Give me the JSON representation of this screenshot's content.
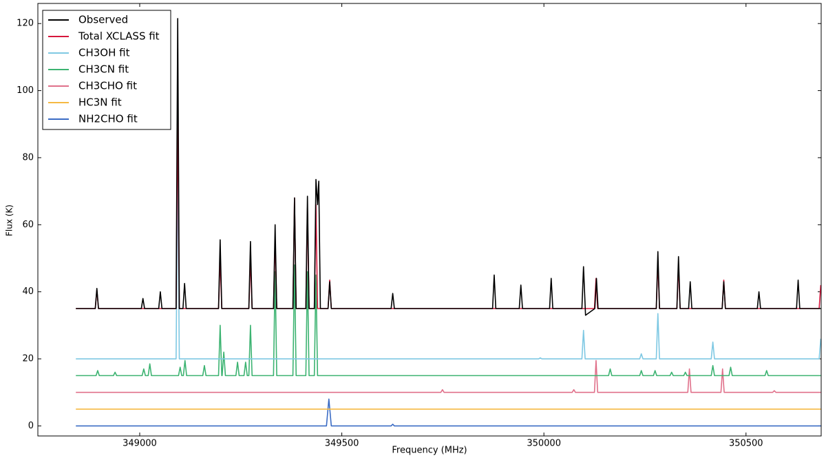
{
  "chart_data": {
    "type": "line",
    "x_label": "Frequency (MHz)",
    "y_label": "Flux (K)",
    "xlim": [
      348748,
      350686
    ],
    "ylim": [
      -3,
      126
    ],
    "xticks": [
      349000,
      349500,
      350000,
      350500
    ],
    "yticks": [
      0,
      20,
      40,
      60,
      80,
      100,
      120
    ],
    "legend": "upper left",
    "series": [
      {
        "name": "Observed",
        "color": "#000000",
        "x": [
          348842,
          348890,
          348894,
          348898,
          349004,
          349008,
          349012,
          349047,
          349051,
          349055,
          349090,
          349094,
          349098,
          349107,
          349111,
          349115,
          349195,
          349199,
          349203,
          349270,
          349274,
          349278,
          349331,
          349335,
          349339,
          349379,
          349383,
          349387,
          349411,
          349415,
          349419,
          349432,
          349436,
          349440,
          349443,
          349447,
          349466,
          349470,
          349474,
          349622,
          349626,
          349630,
          349873,
          349877,
          349881,
          349939,
          349943,
          349947,
          350014,
          350018,
          350022,
          350094,
          350098,
          350103,
          350126,
          350130,
          350134,
          350278,
          350282,
          350286,
          350329,
          350333,
          350337,
          350358,
          350362,
          350366,
          350441,
          350445,
          350449,
          350528,
          350532,
          350536,
          350625,
          350629,
          350633,
          350685
        ],
        "values": [
          35,
          35,
          41,
          35,
          35,
          38,
          35,
          35,
          40,
          35,
          35,
          121.5,
          35,
          35,
          42.5,
          35,
          35,
          55.5,
          35,
          35,
          55,
          35,
          35,
          60,
          35,
          35,
          68,
          35,
          35,
          68.5,
          35,
          35,
          73.5,
          66,
          73,
          35,
          35,
          43,
          35,
          35,
          39.5,
          35,
          35,
          45,
          35,
          35,
          42,
          35,
          35,
          44,
          35,
          35,
          47.5,
          33,
          35,
          44,
          35,
          35,
          52,
          35,
          35,
          50.5,
          35,
          35,
          43,
          35,
          35,
          43,
          35,
          35,
          40,
          35,
          35,
          43.5,
          35,
          35
        ]
      },
      {
        "name": "Total XCLASS fit",
        "color": "#d6163c",
        "x": [
          348842,
          348890,
          348894,
          348898,
          349090,
          349094,
          349098,
          349195,
          349199,
          349203,
          349270,
          349274,
          349278,
          349331,
          349335,
          349339,
          349379,
          349383,
          349387,
          349411,
          349415,
          349419,
          349432,
          349436,
          349440,
          349466,
          349470,
          349474,
          350125,
          350129,
          350133,
          350278,
          350282,
          350286,
          350329,
          350333,
          350337,
          350441,
          350445,
          350449,
          350681,
          350685
        ],
        "values": [
          35,
          35,
          40.5,
          35,
          35,
          93.5,
          35,
          35,
          50,
          35,
          35,
          50,
          35,
          35,
          56,
          35,
          35,
          68,
          35,
          35,
          65,
          35,
          35,
          66,
          35,
          35,
          43.5,
          35,
          35,
          44,
          35,
          35,
          49,
          35,
          35,
          48,
          35,
          35,
          43.5,
          35,
          35,
          42
        ]
      },
      {
        "name": "CH3OH fit",
        "color": "#7ec8e3",
        "x": [
          348842,
          349090,
          349094,
          349098,
          349987,
          349991,
          349995,
          350094,
          350098,
          350102,
          350237,
          350241,
          350245,
          350278,
          350282,
          350286,
          350414,
          350418,
          350422,
          350681,
          350685
        ],
        "values": [
          20,
          20,
          78,
          20,
          20,
          20.3,
          20,
          20,
          28.5,
          20,
          20,
          21.5,
          20,
          20,
          33.5,
          20,
          20,
          25,
          20,
          20,
          26
        ]
      },
      {
        "name": "CH3CN fit",
        "color": "#3cb371",
        "x": [
          348842,
          348892,
          348896,
          348900,
          348935,
          348939,
          348943,
          349006,
          349010,
          349014,
          349021,
          349025,
          349029,
          349096,
          349100,
          349104,
          349108,
          349112,
          349116,
          349156,
          349160,
          349164,
          349195,
          349199,
          349203,
          349204,
          349208,
          349212,
          349238,
          349242,
          349246,
          349258,
          349262,
          349266,
          349270,
          349274,
          349278,
          349331,
          349335,
          349339,
          349379,
          349383,
          349387,
          349411,
          349415,
          349419,
          349432,
          349436,
          349440,
          350160,
          350164,
          350168,
          350237,
          350241,
          350245,
          350271,
          350275,
          350279,
          350312,
          350316,
          350320,
          350346,
          350350,
          350354,
          350414,
          350418,
          350422,
          350458,
          350462,
          350466,
          350547,
          350551,
          350555,
          350685
        ],
        "values": [
          15,
          15,
          16.5,
          15,
          15,
          16,
          15,
          15,
          17,
          15,
          15,
          18.5,
          15,
          15,
          17.5,
          15,
          15,
          19.5,
          15,
          15,
          18,
          15,
          15,
          30,
          15,
          15,
          22,
          15,
          15,
          19,
          15,
          15,
          19,
          15,
          15,
          30,
          15,
          15,
          46,
          15,
          15,
          48,
          15,
          15,
          46,
          15,
          15,
          45,
          15,
          15,
          17,
          15,
          15,
          16.5,
          15,
          15,
          16.5,
          15,
          15,
          16,
          15,
          15,
          16,
          15,
          15,
          18,
          15,
          15,
          17.5,
          15,
          15,
          16.5,
          15,
          15
        ]
      },
      {
        "name": "CH3CHO fit",
        "color": "#e0708a",
        "x": [
          348842,
          349745,
          349749,
          349753,
          350070,
          350074,
          350078,
          350125,
          350129,
          350133,
          350356,
          350360,
          350364,
          350438,
          350442,
          350446,
          350566,
          350570,
          350574,
          350685
        ],
        "values": [
          10,
          10,
          10.8,
          10,
          10,
          10.8,
          10,
          10,
          19.5,
          10,
          10,
          17,
          10,
          10,
          17,
          10,
          10,
          10.5,
          10,
          10
        ]
      },
      {
        "name": "HC3N fit",
        "color": "#f5b942",
        "x": [
          348842,
          350685
        ],
        "values": [
          5,
          5
        ]
      },
      {
        "name": "NH2CHO fit",
        "color": "#3a6bc4",
        "x": [
          348842,
          349462,
          349468,
          349474,
          349622,
          349626,
          349630,
          350685
        ],
        "values": [
          0,
          0,
          8,
          0,
          0,
          0.5,
          0,
          0
        ]
      }
    ]
  }
}
